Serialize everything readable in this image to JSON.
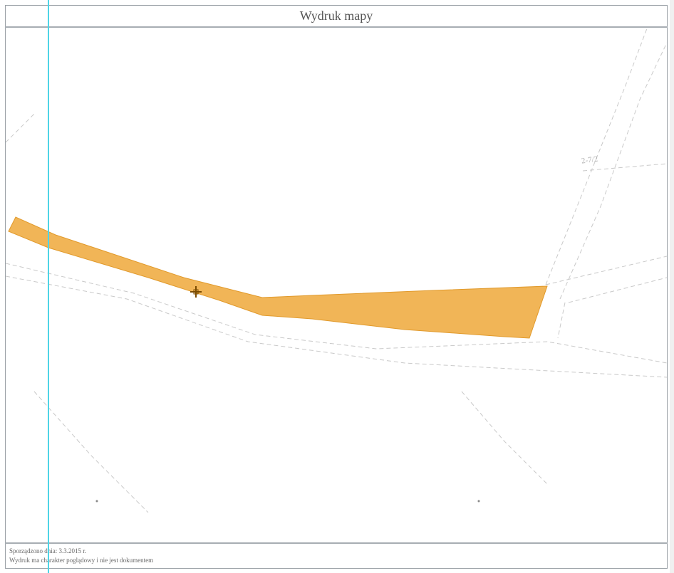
{
  "header": {
    "title": "Wydruk mapy"
  },
  "map": {
    "parcel_label": "2-7/2",
    "highlight_color": "#efa83a",
    "guide_color": "#4fd4e6",
    "marker_icon": "cross-marker"
  },
  "footer": {
    "line1": "Sporządzono dnia: 3.3.2015 r.",
    "line2": "Wydruk ma charakter poglądowy i nie jest dokumentem"
  }
}
